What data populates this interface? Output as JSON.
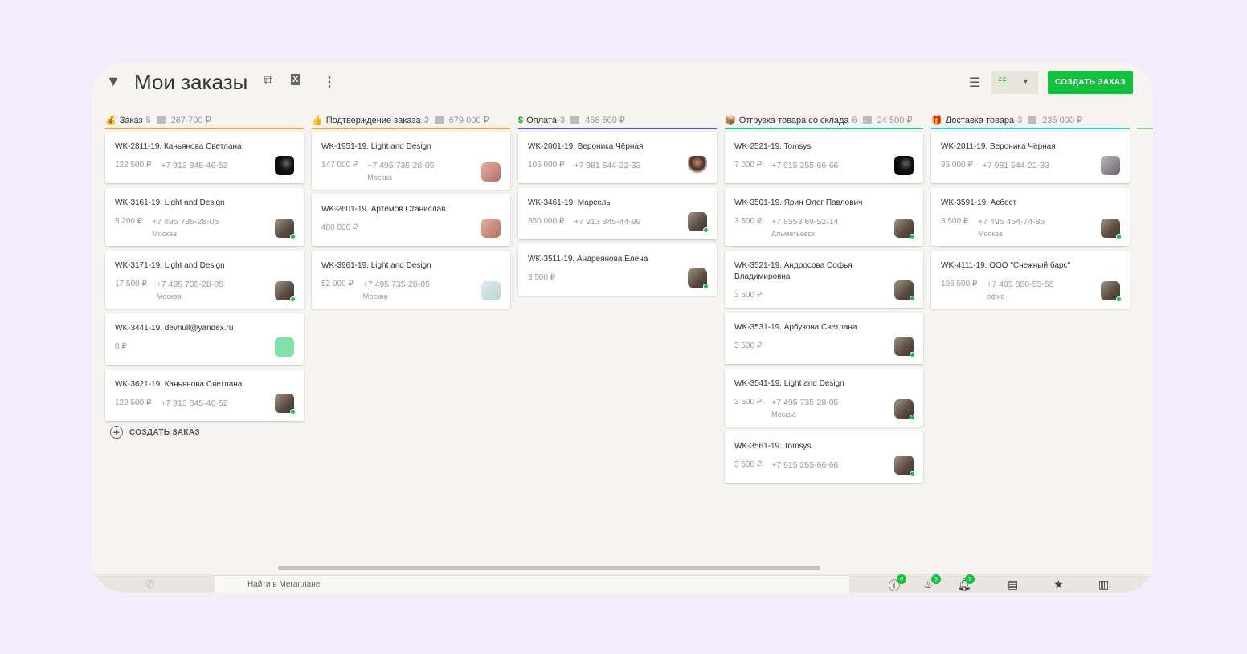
{
  "header": {
    "title": "Мои заказы",
    "create_label": "СОЗДАТЬ ЗАКАЗ"
  },
  "columns": [
    {
      "name": "Заказ",
      "icon": "money-bag-icon",
      "emoji": "💰",
      "count": "5",
      "sum": "267 700 ₽",
      "color": "#f5a040",
      "cards": [
        {
          "title": "WK-2811-19. Каньянова Светлана",
          "amount": "122 500 ₽",
          "phone": "+7 913 845-46-52",
          "city": "",
          "avatar": "dark",
          "online": false
        },
        {
          "title": "WK-3161-19. Light and Design",
          "amount": "5 200 ₽",
          "phone": "+7 495 735-28-05",
          "city": "Москва",
          "avatar": "man",
          "online": true
        },
        {
          "title": "WK-3171-19. Light and Design",
          "amount": "17 500 ₽",
          "phone": "+7 495 735-28-05",
          "city": "Москва",
          "avatar": "man",
          "online": true
        },
        {
          "title": "WK-3441-19. devnull@yandex.ru",
          "amount": "0 ₽",
          "phone": "",
          "city": "",
          "avatar": "plane",
          "online": false
        },
        {
          "title": "WK-3621-19. Каньянова Светлана",
          "amount": "122 500 ₽",
          "phone": "+7 913 845-46-52",
          "city": "",
          "avatar": "man",
          "online": true
        }
      ]
    },
    {
      "name": "Подтверждение заказа",
      "icon": "thumbs-up-icon",
      "emoji": "👍",
      "count": "3",
      "sum": "679 000 ₽",
      "color": "#f5a040",
      "cards": [
        {
          "title": "WK-1951-19. Light and Design",
          "amount": "147 000 ₽",
          "phone": "+7 495 735-28-05",
          "city": "Москва",
          "avatar": "girl",
          "online": false
        },
        {
          "title": "WK-2601-19. Артёмов Станислав",
          "amount": "480 000 ₽",
          "phone": "",
          "city": "",
          "avatar": "girl",
          "online": false
        },
        {
          "title": "WK-3961-19. Light and Design",
          "amount": "52 000 ₽",
          "phone": "+7 495 735-28-05",
          "city": "Москва",
          "avatar": "mint",
          "online": false
        }
      ]
    },
    {
      "name": "Оплата",
      "icon": "dollar-icon",
      "emoji": "$",
      "count": "3",
      "sum": "458 500 ₽",
      "color": "#5a50f0",
      "cards": [
        {
          "title": "WK-2001-19. Вероника Чёрная",
          "amount": "105 000 ₽",
          "phone": "+7 981 544-22-33",
          "city": "",
          "avatar": "woman",
          "online": false
        },
        {
          "title": "WK-3461-19. Марсель",
          "amount": "350 000 ₽",
          "phone": "+7 913 845-44-99",
          "city": "",
          "avatar": "man",
          "online": true
        },
        {
          "title": "WK-3511-19. Андреянова Елена",
          "amount": "3 500 ₽",
          "phone": "",
          "city": "",
          "avatar": "man",
          "online": true
        }
      ]
    },
    {
      "name": "Отгрузка товара со склада",
      "icon": "box-icon",
      "emoji": "📦",
      "count": "6",
      "sum": "24 500 ₽",
      "color": "#20c0a0",
      "cards": [
        {
          "title": "WK-2521-19. Tomsys",
          "amount": "7 000 ₽",
          "phone": "+7 915 255-66-66",
          "city": "",
          "avatar": "dark",
          "online": false
        },
        {
          "title": "WK-3501-19. Ярин Олег Павлович",
          "amount": "3 500 ₽",
          "phone": "+7 8553 69-52-14",
          "city": "Альметьевск",
          "avatar": "man",
          "online": true
        },
        {
          "title": "WK-3521-19. Андросова Софья Владимировна",
          "amount": "3 500 ₽",
          "phone": "",
          "city": "",
          "avatar": "man",
          "online": true
        },
        {
          "title": "WK-3531-19. Арбузова Светлана",
          "amount": "3 500 ₽",
          "phone": "",
          "city": "",
          "avatar": "man",
          "online": true
        },
        {
          "title": "WK-3541-19. Light and Design",
          "amount": "3 500 ₽",
          "phone": "+7 495 735-28-05",
          "city": "Москва",
          "avatar": "man",
          "online": true
        },
        {
          "title": "WK-3561-19. Tomsys",
          "amount": "3 500 ₽",
          "phone": "+7 915 255-66-66",
          "city": "",
          "avatar": "man",
          "online": true
        }
      ]
    },
    {
      "name": "Доставка товара",
      "icon": "gift-icon",
      "emoji": "🎁",
      "count": "3",
      "sum": "235 000 ₽",
      "color": "#38c8e0",
      "cards": [
        {
          "title": "WK-2011-19. Вероника Чёрная",
          "amount": "35 000 ₽",
          "phone": "+7 981 544-22-33",
          "city": "",
          "avatar": "group",
          "online": false
        },
        {
          "title": "WK-3591-19. Асбест",
          "amount": "3 500 ₽",
          "phone": "+7 495 454-74-85",
          "city": "Москва",
          "avatar": "man",
          "online": true
        },
        {
          "title": "WK-4111-19. ООО \"Снежный барс\"",
          "amount": "196 500 ₽",
          "phone": "+7 495 850-55-55",
          "city": "офис",
          "avatar": "man",
          "online": true
        }
      ]
    }
  ],
  "add_order_label": "СОЗДАТЬ ЗАКАЗ",
  "bottom": {
    "search_placeholder": "Найти в Мегаплане",
    "badges": {
      "alerts": "6",
      "hot": "3",
      "notifications": "1"
    }
  }
}
